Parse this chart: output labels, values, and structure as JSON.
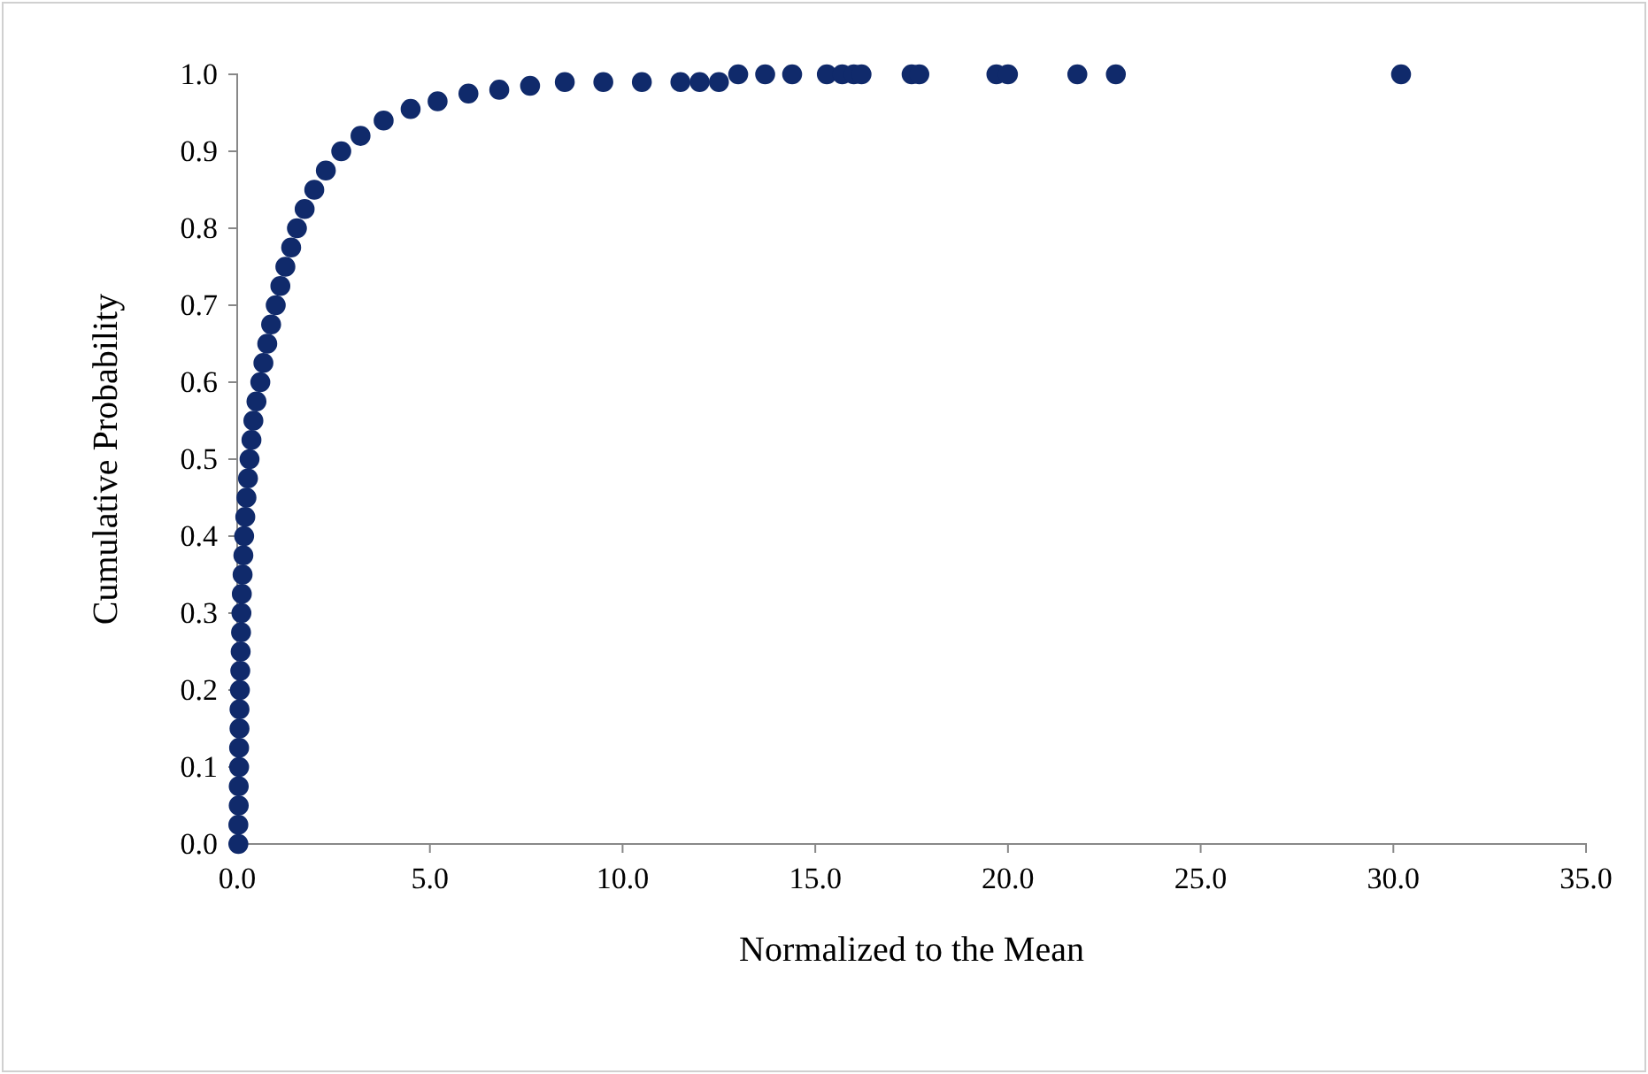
{
  "chart_data": {
    "type": "scatter",
    "xlabel": "Normalized to the Mean",
    "ylabel": "Cumulative Probability",
    "xlim": [
      0,
      35
    ],
    "ylim": [
      0,
      1
    ],
    "xticks": [
      {
        "value": 0,
        "label": "0.0"
      },
      {
        "value": 5,
        "label": "5.0"
      },
      {
        "value": 10,
        "label": "10.0"
      },
      {
        "value": 15,
        "label": "15.0"
      },
      {
        "value": 20,
        "label": "20.0"
      },
      {
        "value": 25,
        "label": "25.0"
      },
      {
        "value": 30,
        "label": "30.0"
      },
      {
        "value": 35,
        "label": "35.0"
      }
    ],
    "yticks": [
      {
        "value": 0,
        "label": "0.0"
      },
      {
        "value": 0.1,
        "label": "0.1"
      },
      {
        "value": 0.2,
        "label": "0.2"
      },
      {
        "value": 0.3,
        "label": "0.3"
      },
      {
        "value": 0.4,
        "label": "0.4"
      },
      {
        "value": 0.5,
        "label": "0.5"
      },
      {
        "value": 0.6,
        "label": "0.6"
      },
      {
        "value": 0.7,
        "label": "0.7"
      },
      {
        "value": 0.8,
        "label": "0.8"
      },
      {
        "value": 0.9,
        "label": "0.9"
      },
      {
        "value": 1,
        "label": "1.0"
      }
    ],
    "grid": false,
    "marker": "circle",
    "series": [
      {
        "color": "#102a6b",
        "x": [
          0.03,
          0.03,
          0.04,
          0.04,
          0.05,
          0.05,
          0.06,
          0.06,
          0.07,
          0.08,
          0.09,
          0.1,
          0.11,
          0.12,
          0.14,
          0.16,
          0.18,
          0.21,
          0.24,
          0.28,
          0.32,
          0.37,
          0.42,
          0.5,
          0.6,
          0.68,
          0.78,
          0.88,
          1.0,
          1.12,
          1.25,
          1.4,
          1.55,
          1.75,
          2.0,
          2.3,
          2.7,
          3.2,
          3.8,
          4.5,
          5.2,
          6.0,
          6.8,
          7.6,
          8.5,
          9.5,
          10.5,
          11.5,
          12.0,
          12.5,
          13.0,
          13.7,
          14.4,
          15.3,
          15.7,
          16.0,
          16.2,
          17.5,
          17.7,
          19.7,
          20.0,
          21.8,
          22.8,
          30.2
        ],
        "values": [
          0.0,
          0.025,
          0.05,
          0.075,
          0.1,
          0.125,
          0.15,
          0.175,
          0.2,
          0.225,
          0.25,
          0.275,
          0.3,
          0.325,
          0.35,
          0.375,
          0.4,
          0.425,
          0.45,
          0.475,
          0.5,
          0.525,
          0.55,
          0.575,
          0.6,
          0.625,
          0.65,
          0.675,
          0.7,
          0.725,
          0.75,
          0.775,
          0.8,
          0.825,
          0.85,
          0.875,
          0.9,
          0.92,
          0.94,
          0.955,
          0.965,
          0.975,
          0.98,
          0.985,
          0.99,
          0.99,
          0.99,
          0.99,
          0.99,
          0.99,
          1.0,
          1.0,
          1.0,
          1.0,
          1.0,
          1.0,
          1.0,
          1.0,
          1.0,
          1.0,
          1.0,
          1.0,
          1.0,
          1.0
        ]
      }
    ]
  }
}
